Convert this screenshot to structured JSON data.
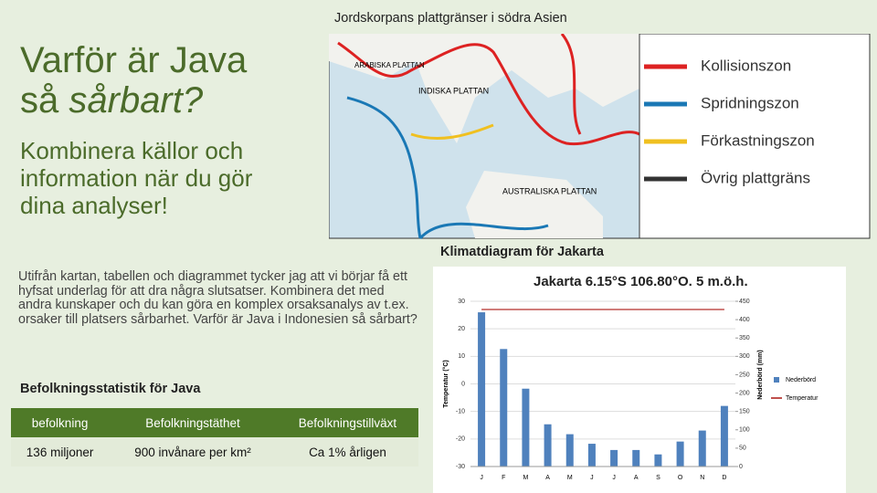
{
  "slide": {
    "title_line1": "Varför är Java",
    "title_line2_plain": "så",
    "title_line2_italic": "sårbart?",
    "subtitle": "Kombinera källor och information när du gör dina analyser!",
    "paragraph": "Utifrån kartan, tabellen och diagrammet tycker jag att vi börjar få ett hyfsat underlag för att dra några slutsatser. Kombinera det med andra kunskaper och du kan göra en komplex orsaksanalys av t.ex. orsaker till platsers sårbarhet. Varför är Java i Indonesien så sårbart?"
  },
  "map": {
    "caption": "Jordskorpans plattgränser i södra Asien",
    "labels": [
      "ARABISKA PLATTAN",
      "INDISKA PLATTAN",
      "AUSTRALISKA PLATTAN"
    ],
    "legend": [
      "Kollisionszon",
      "Spridningszon",
      "Förkastningszon",
      "Övrig plattgräns"
    ]
  },
  "table": {
    "heading": "Befolkningsstatistik för Java",
    "header": [
      "befolkning",
      "Befolkningstäthet",
      "Befolkningstillväxt"
    ],
    "rows": [
      [
        "136 miljoner",
        "900 invånare per km²",
        "Ca 1% årligen"
      ]
    ]
  },
  "chart_caption": "Klimatdiagram för Jakarta",
  "chart_data": {
    "type": "bar",
    "title": "Jakarta 6.15°S 106.80°O. 5 m.ö.h.",
    "categories": [
      "J",
      "F",
      "M",
      "A",
      "M",
      "J",
      "J",
      "A",
      "S",
      "O",
      "N",
      "D"
    ],
    "series": [
      {
        "name": "Nederbörd",
        "color": "#4f81bd",
        "axis": "y2",
        "values": [
          420,
          320,
          212,
          115,
          88,
          62,
          45,
          45,
          33,
          68,
          98,
          165
        ]
      },
      {
        "name": "Temperatur",
        "color": "#c0504d",
        "type": "line",
        "values": [
          27,
          27,
          27,
          27,
          27,
          27,
          27,
          27,
          27,
          27,
          27,
          27
        ]
      }
    ],
    "ylabel": "Temperatur (°C)",
    "y2label": "Nederbörd (mm)",
    "ylim": [
      -30,
      30
    ],
    "yticks": [
      30,
      20,
      10,
      0,
      -10,
      -20,
      -30
    ],
    "y2lim": [
      0,
      450
    ],
    "y2ticks": [
      450,
      400,
      350,
      300,
      250,
      200,
      150,
      100,
      50,
      0
    ],
    "grid": true
  }
}
